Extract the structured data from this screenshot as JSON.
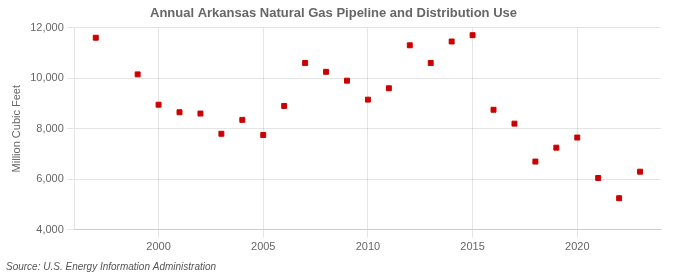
{
  "chart_data": {
    "type": "scatter",
    "title": "Annual Arkansas Natural Gas Pipeline and Distribution Use",
    "ylabel": "Million Cubic Feet",
    "source": "Source: U.S. Energy Information Administration",
    "x": [
      1997,
      1999,
      2000,
      2001,
      2002,
      2003,
      2004,
      2005,
      2006,
      2007,
      2008,
      2009,
      2010,
      2011,
      2012,
      2013,
      2014,
      2015,
      2016,
      2017,
      2018,
      2019,
      2020,
      2021,
      2022,
      2023
    ],
    "values": [
      11600,
      10150,
      8950,
      8650,
      8600,
      7800,
      8350,
      7750,
      8900,
      10600,
      10250,
      9900,
      9150,
      9600,
      11300,
      10600,
      11450,
      11700,
      8750,
      8200,
      6700,
      7250,
      7650,
      6050,
      5250,
      6300
    ],
    "color": "#cc0000",
    "marker": "square",
    "xlim": [
      1996,
      2024
    ],
    "xticks": [
      2000,
      2005,
      2010,
      2015,
      2020
    ],
    "ylim": [
      4000,
      12000
    ],
    "yticks": [
      {
        "value": 4000,
        "label": "4,000"
      },
      {
        "value": 6000,
        "label": "6,000"
      },
      {
        "value": 8000,
        "label": "8,000"
      },
      {
        "value": 10000,
        "label": "10,000"
      },
      {
        "value": 12000,
        "label": "12,000"
      }
    ],
    "grid": true
  }
}
